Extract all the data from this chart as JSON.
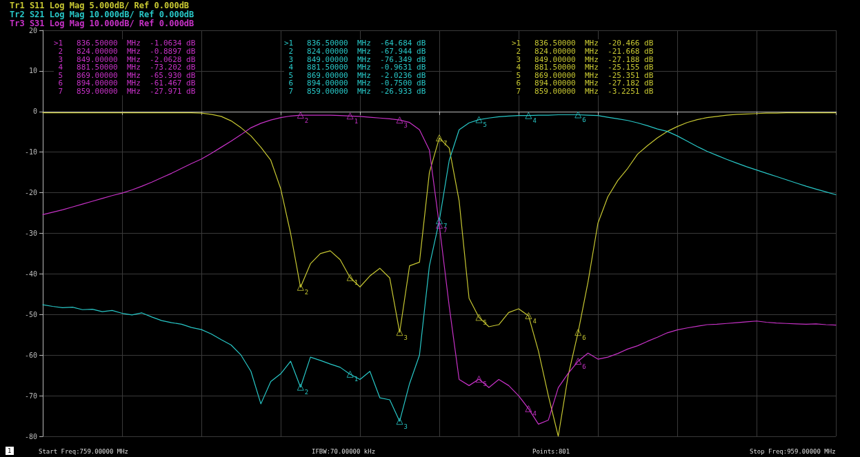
{
  "chart_data": {
    "type": "line",
    "marker": "none",
    "grid": true,
    "tick_labels": "y",
    "categories": [
      null,
      null,
      null,
      null,
      null,
      null,
      null,
      null,
      null,
      null,
      null,
      null,
      null,
      null,
      null,
      null,
      null,
      null,
      null,
      null,
      null,
      null,
      null,
      null,
      null,
      null,
      null,
      null,
      null,
      null,
      null,
      null,
      null,
      null,
      null,
      null,
      null,
      null,
      null,
      null,
      null,
      null,
      null,
      null,
      null,
      null,
      null,
      null,
      null,
      null,
      null,
      null,
      null,
      null,
      null,
      null,
      null,
      null,
      null,
      null,
      null,
      null,
      null,
      null,
      null,
      null,
      null,
      null,
      null,
      null,
      null,
      null,
      null,
      null,
      null,
      null,
      null,
      null,
      null,
      null,
      null
    ],
    "ylim": [
      -80,
      20
    ],
    "yticks": [
      -80,
      -70,
      -60,
      -50,
      -40,
      -30,
      -20,
      -10,
      0,
      10,
      20
    ],
    "series": [
      {
        "name": "Tr1 S11 Log Mag 5.000dB/ Ref 0.000dB",
        "color": "#c8c832",
        "values": [
          -0.3,
          -0.3,
          -0.3,
          -0.3,
          -0.3,
          -0.3,
          -0.3,
          -0.3,
          -0.3,
          -0.3,
          -0.3,
          -0.3,
          -0.3,
          -0.3,
          -0.3,
          -0.3,
          -0.4,
          -0.7,
          -1.2,
          -2.3,
          -4,
          -6,
          -8.8,
          -12,
          -19,
          -30,
          -43.3,
          -37.5,
          -35,
          -34.3,
          -36.5,
          -40.9,
          -43.2,
          -40.5,
          -38.6,
          -41,
          -54.4,
          -38,
          -37.1,
          -15,
          -6.5,
          -9,
          -22,
          -46,
          -50.7,
          -53,
          -52.5,
          -49.5,
          -48.6,
          -50.3,
          -59,
          -70,
          -80,
          -65,
          -54.4,
          -42,
          -27.5,
          -21,
          -17,
          -14,
          -10.5,
          -8.4,
          -6.5,
          -4.9,
          -3.7,
          -2.7,
          -2,
          -1.5,
          -1.2,
          -0.9,
          -0.7,
          -0.6,
          -0.5,
          -0.4,
          -0.4,
          -0.3,
          -0.3,
          -0.3,
          -0.3,
          -0.3,
          -0.3
        ]
      },
      {
        "name": "Tr2 S21 Log Mag 10.000dB/ Ref 0.000dB",
        "color": "#28c8c8",
        "values": [
          -47.6,
          -48,
          -48.3,
          -48.2,
          -48.8,
          -48.7,
          -49.3,
          -49,
          -49.7,
          -50.1,
          -49.6,
          -50.6,
          -51.5,
          -52,
          -52.4,
          -53.2,
          -53.7,
          -54.8,
          -56.2,
          -57.5,
          -60,
          -64,
          -72,
          -66.5,
          -64.6,
          -61.5,
          -67.9,
          -60.5,
          -61.3,
          -62.2,
          -63,
          -64.7,
          -66,
          -64,
          -70.5,
          -71,
          -76.3,
          -67,
          -60,
          -38,
          -26.9,
          -12,
          -4.5,
          -2.8,
          -2,
          -1.6,
          -1.3,
          -1.1,
          -1,
          -1,
          -0.9,
          -0.9,
          -0.8,
          -0.8,
          -0.8,
          -0.9,
          -1,
          -1.4,
          -1.8,
          -2.2,
          -2.8,
          -3.5,
          -4.3,
          -4.9,
          -6,
          -7.3,
          -8.6,
          -9.8,
          -10.8,
          -11.8,
          -12.7,
          -13.6,
          -14.4,
          -15.2,
          -16,
          -16.8,
          -17.6,
          -18.4,
          -19.1,
          -19.8,
          -20.5
        ]
      },
      {
        "name": "Tr3 S31 Log Mag 10.000dB/ Ref 0.000dB",
        "color": "#c832c8",
        "values": [
          -25.4,
          -24.8,
          -24.2,
          -23.5,
          -22.8,
          -22.1,
          -21.4,
          -20.7,
          -20.1,
          -19.3,
          -18.4,
          -17.4,
          -16.3,
          -15.2,
          -14,
          -12.8,
          -11.7,
          -10.3,
          -8.8,
          -7.3,
          -5.7,
          -4,
          -2.9,
          -2.1,
          -1.5,
          -1.1,
          -0.9,
          -0.9,
          -0.9,
          -0.9,
          -1,
          -1.1,
          -1.2,
          -1.4,
          -1.6,
          -1.8,
          -2.1,
          -2.7,
          -4.5,
          -9.5,
          -28,
          -48,
          -66,
          -67.5,
          -65.9,
          -68,
          -66,
          -67.5,
          -70,
          -73.2,
          -77,
          -76,
          -68,
          -64.5,
          -61.5,
          -59.5,
          -61,
          -60.5,
          -59.6,
          -58.5,
          -57.7,
          -56.6,
          -55.6,
          -54.5,
          -53.8,
          -53.3,
          -52.9,
          -52.5,
          -52.4,
          -52.2,
          -52,
          -51.8,
          -51.6,
          -51.9,
          -52.1,
          -52.2,
          -52.3,
          -52.4,
          -52.3,
          -52.5,
          -52.6
        ]
      },
      {
        "type": "scatter",
        "marker": "triangle",
        "color": "#c8c832",
        "values": [
          null,
          null,
          null,
          null,
          null,
          null,
          null,
          null,
          null,
          null,
          null,
          null,
          null,
          null,
          null,
          null,
          null,
          null,
          null,
          null,
          null,
          null,
          null,
          null,
          null,
          null,
          -43.3,
          null,
          null,
          null,
          null,
          -40.9,
          null,
          null,
          null,
          null,
          -54.4,
          null,
          null,
          null,
          -6.5,
          null,
          null,
          null,
          -50.7,
          null,
          null,
          null,
          null,
          -50.3,
          null,
          null,
          null,
          null,
          -54.4,
          null,
          null,
          null,
          null,
          null,
          null,
          null,
          null,
          null,
          null,
          null,
          null,
          null,
          null,
          null,
          null,
          null,
          null,
          null,
          null,
          null,
          null,
          null,
          null,
          null,
          null
        ]
      },
      {
        "type": "scatter",
        "marker": "triangle",
        "color": "#28c8c8",
        "values": [
          null,
          null,
          null,
          null,
          null,
          null,
          null,
          null,
          null,
          null,
          null,
          null,
          null,
          null,
          null,
          null,
          null,
          null,
          null,
          null,
          null,
          null,
          null,
          null,
          null,
          null,
          -67.9,
          null,
          null,
          null,
          null,
          -64.7,
          null,
          null,
          null,
          null,
          -76.3,
          null,
          null,
          null,
          -26.9,
          null,
          null,
          null,
          -2,
          null,
          null,
          null,
          null,
          -1,
          null,
          null,
          null,
          null,
          -0.8,
          null,
          null,
          null,
          null,
          null,
          null,
          null,
          null,
          null,
          null,
          null,
          null,
          null,
          null,
          null,
          null,
          null,
          null,
          null,
          null,
          null,
          null,
          null,
          null,
          null,
          null
        ]
      },
      {
        "type": "scatter",
        "marker": "triangle",
        "color": "#c832c8",
        "values": [
          null,
          null,
          null,
          null,
          null,
          null,
          null,
          null,
          null,
          null,
          null,
          null,
          null,
          null,
          null,
          null,
          null,
          null,
          null,
          null,
          null,
          null,
          null,
          null,
          null,
          null,
          -0.9,
          null,
          null,
          null,
          null,
          -1.1,
          null,
          null,
          null,
          null,
          -2.1,
          null,
          null,
          null,
          -28,
          null,
          null,
          null,
          -65.9,
          null,
          null,
          null,
          null,
          -73.2,
          null,
          null,
          null,
          null,
          -61.5,
          null,
          null,
          null,
          null,
          null,
          null,
          null,
          null,
          null,
          null,
          null,
          null,
          null,
          null,
          null,
          null,
          null,
          null,
          null,
          null,
          null,
          null,
          null,
          null,
          null,
          null
        ]
      }
    ],
    "annotations": [
      ">1   836.50000  MHz  -1.0634 dB\n 2   824.00000  MHz  -0.8897 dB\n 3   849.00000  MHz  -2.0628 dB\n 4   881.50000  MHz  -73.202 dB\n 5   869.00000  MHz  -65.930 dB\n 6   894.00000  MHz  -61.467 dB\n 7   859.00000  MHz  -27.971 dB",
      ">1   836.50000  MHz  -64.684 dB\n 2   824.00000  MHz  -67.944 dB\n 3   849.00000  MHz  -76.349 dB\n 4   881.50000  MHz  -0.9631 dB\n 5   869.00000  MHz  -2.0236 dB\n 6   894.00000  MHz  -0.7500 dB\n 7   859.00000  MHz  -26.933 dB",
      ">1   836.50000  MHz  -20.466 dB\n 2   824.00000  MHz  -21.668 dB\n 3   849.00000  MHz  -27.188 dB\n 4   881.50000  MHz  -25.155 dB\n 5   869.00000  MHz  -25.351 dB\n 6   894.00000  MHz  -27.182 dB\n 7   859.00000  MHz  -3.2251 dB",
      "1",
      "Start Freq:759.00000 MHz",
      "IFBW:70.00000 kHz",
      "Points:801",
      "Stop Freq:959.00000 MHz",
      "2",
      "1",
      "3",
      "7",
      "5",
      "4",
      "6",
      "2",
      "1",
      "3",
      "7",
      "5",
      "4",
      "6",
      "2",
      "1",
      "3",
      "7",
      "5",
      "4",
      "6"
    ]
  }
}
